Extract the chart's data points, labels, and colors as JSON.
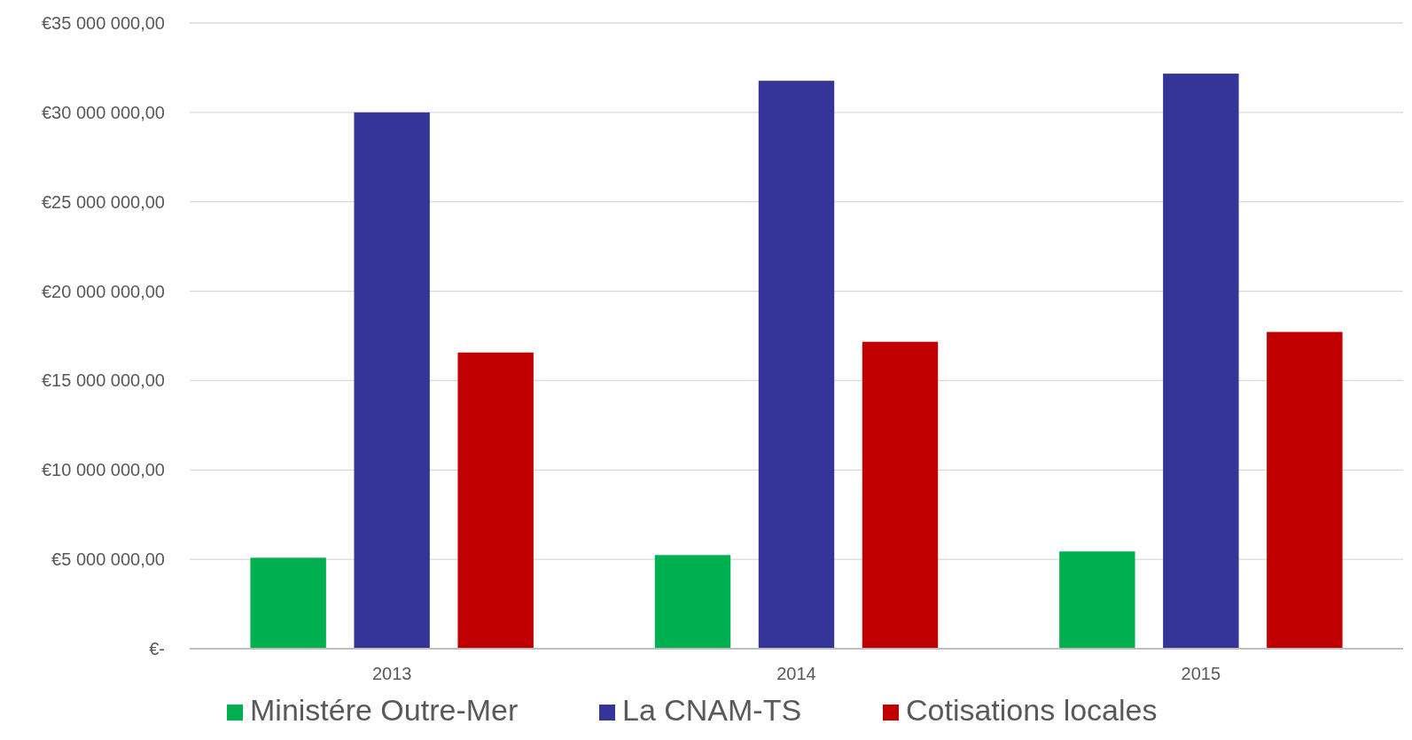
{
  "chart_data": {
    "type": "bar",
    "categories": [
      "2013",
      "2014",
      "2015"
    ],
    "series": [
      {
        "name": "Ministére Outre-Mer",
        "color": "#00b050",
        "values": [
          5090000,
          5240000,
          5440000
        ]
      },
      {
        "name": "La CNAM-TS",
        "color": "#353499",
        "values": [
          30000000,
          31770000,
          32170000
        ]
      },
      {
        "name": "Cotisations locales",
        "color": "#c00000",
        "values": [
          16570000,
          17170000,
          17720000
        ]
      }
    ],
    "ylim": [
      0,
      35000000
    ],
    "yticks": [
      {
        "value": 0,
        "label": "€-"
      },
      {
        "value": 5000000,
        "label": "€5 000 000,00"
      },
      {
        "value": 10000000,
        "label": "€10 000 000,00"
      },
      {
        "value": 15000000,
        "label": "€15 000 000,00"
      },
      {
        "value": 20000000,
        "label": "€20 000 000,00"
      },
      {
        "value": 25000000,
        "label": "€25 000 000,00"
      },
      {
        "value": 30000000,
        "label": "€30 000 000,00"
      },
      {
        "value": 35000000,
        "label": "€35 000 000,00"
      }
    ],
    "grid": "y",
    "legend": "bottom"
  }
}
